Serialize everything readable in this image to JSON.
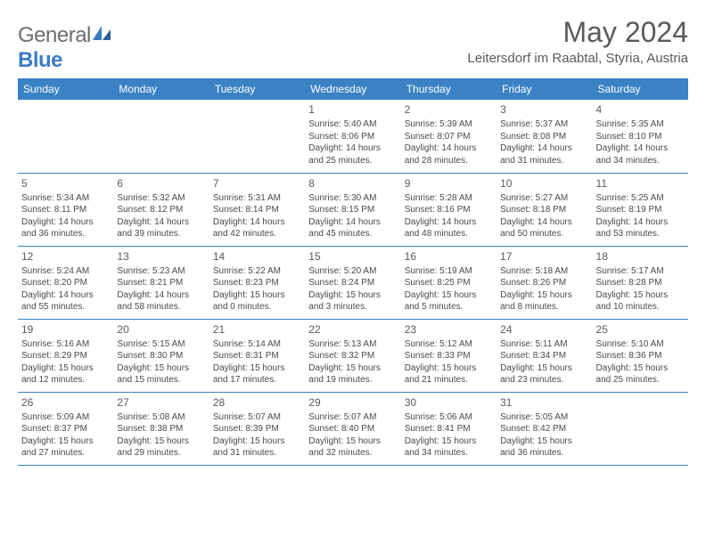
{
  "logo": {
    "word1": "General",
    "word2": "Blue"
  },
  "title": "May 2024",
  "location": "Leitersdorf im Raabtal, Styria, Austria",
  "colors": {
    "header_bg": "#3a82c4",
    "header_text": "#ffffff",
    "cell_border": "#3a82c4",
    "text": "#4a4a4a",
    "title_text": "#5a5a5a",
    "logo_gray": "#6e6e6e",
    "logo_blue": "#3a7cc4"
  },
  "weekdays": [
    "Sunday",
    "Monday",
    "Tuesday",
    "Wednesday",
    "Thursday",
    "Friday",
    "Saturday"
  ],
  "weeks": [
    [
      {
        "day": null
      },
      {
        "day": null
      },
      {
        "day": null
      },
      {
        "day": 1,
        "sunrise": "Sunrise: 5:40 AM",
        "sunset": "Sunset: 8:06 PM",
        "daylight1": "Daylight: 14 hours",
        "daylight2": "and 25 minutes."
      },
      {
        "day": 2,
        "sunrise": "Sunrise: 5:39 AM",
        "sunset": "Sunset: 8:07 PM",
        "daylight1": "Daylight: 14 hours",
        "daylight2": "and 28 minutes."
      },
      {
        "day": 3,
        "sunrise": "Sunrise: 5:37 AM",
        "sunset": "Sunset: 8:08 PM",
        "daylight1": "Daylight: 14 hours",
        "daylight2": "and 31 minutes."
      },
      {
        "day": 4,
        "sunrise": "Sunrise: 5:35 AM",
        "sunset": "Sunset: 8:10 PM",
        "daylight1": "Daylight: 14 hours",
        "daylight2": "and 34 minutes."
      }
    ],
    [
      {
        "day": 5,
        "sunrise": "Sunrise: 5:34 AM",
        "sunset": "Sunset: 8:11 PM",
        "daylight1": "Daylight: 14 hours",
        "daylight2": "and 36 minutes."
      },
      {
        "day": 6,
        "sunrise": "Sunrise: 5:32 AM",
        "sunset": "Sunset: 8:12 PM",
        "daylight1": "Daylight: 14 hours",
        "daylight2": "and 39 minutes."
      },
      {
        "day": 7,
        "sunrise": "Sunrise: 5:31 AM",
        "sunset": "Sunset: 8:14 PM",
        "daylight1": "Daylight: 14 hours",
        "daylight2": "and 42 minutes."
      },
      {
        "day": 8,
        "sunrise": "Sunrise: 5:30 AM",
        "sunset": "Sunset: 8:15 PM",
        "daylight1": "Daylight: 14 hours",
        "daylight2": "and 45 minutes."
      },
      {
        "day": 9,
        "sunrise": "Sunrise: 5:28 AM",
        "sunset": "Sunset: 8:16 PM",
        "daylight1": "Daylight: 14 hours",
        "daylight2": "and 48 minutes."
      },
      {
        "day": 10,
        "sunrise": "Sunrise: 5:27 AM",
        "sunset": "Sunset: 8:18 PM",
        "daylight1": "Daylight: 14 hours",
        "daylight2": "and 50 minutes."
      },
      {
        "day": 11,
        "sunrise": "Sunrise: 5:25 AM",
        "sunset": "Sunset: 8:19 PM",
        "daylight1": "Daylight: 14 hours",
        "daylight2": "and 53 minutes."
      }
    ],
    [
      {
        "day": 12,
        "sunrise": "Sunrise: 5:24 AM",
        "sunset": "Sunset: 8:20 PM",
        "daylight1": "Daylight: 14 hours",
        "daylight2": "and 55 minutes."
      },
      {
        "day": 13,
        "sunrise": "Sunrise: 5:23 AM",
        "sunset": "Sunset: 8:21 PM",
        "daylight1": "Daylight: 14 hours",
        "daylight2": "and 58 minutes."
      },
      {
        "day": 14,
        "sunrise": "Sunrise: 5:22 AM",
        "sunset": "Sunset: 8:23 PM",
        "daylight1": "Daylight: 15 hours",
        "daylight2": "and 0 minutes."
      },
      {
        "day": 15,
        "sunrise": "Sunrise: 5:20 AM",
        "sunset": "Sunset: 8:24 PM",
        "daylight1": "Daylight: 15 hours",
        "daylight2": "and 3 minutes."
      },
      {
        "day": 16,
        "sunrise": "Sunrise: 5:19 AM",
        "sunset": "Sunset: 8:25 PM",
        "daylight1": "Daylight: 15 hours",
        "daylight2": "and 5 minutes."
      },
      {
        "day": 17,
        "sunrise": "Sunrise: 5:18 AM",
        "sunset": "Sunset: 8:26 PM",
        "daylight1": "Daylight: 15 hours",
        "daylight2": "and 8 minutes."
      },
      {
        "day": 18,
        "sunrise": "Sunrise: 5:17 AM",
        "sunset": "Sunset: 8:28 PM",
        "daylight1": "Daylight: 15 hours",
        "daylight2": "and 10 minutes."
      }
    ],
    [
      {
        "day": 19,
        "sunrise": "Sunrise: 5:16 AM",
        "sunset": "Sunset: 8:29 PM",
        "daylight1": "Daylight: 15 hours",
        "daylight2": "and 12 minutes."
      },
      {
        "day": 20,
        "sunrise": "Sunrise: 5:15 AM",
        "sunset": "Sunset: 8:30 PM",
        "daylight1": "Daylight: 15 hours",
        "daylight2": "and 15 minutes."
      },
      {
        "day": 21,
        "sunrise": "Sunrise: 5:14 AM",
        "sunset": "Sunset: 8:31 PM",
        "daylight1": "Daylight: 15 hours",
        "daylight2": "and 17 minutes."
      },
      {
        "day": 22,
        "sunrise": "Sunrise: 5:13 AM",
        "sunset": "Sunset: 8:32 PM",
        "daylight1": "Daylight: 15 hours",
        "daylight2": "and 19 minutes."
      },
      {
        "day": 23,
        "sunrise": "Sunrise: 5:12 AM",
        "sunset": "Sunset: 8:33 PM",
        "daylight1": "Daylight: 15 hours",
        "daylight2": "and 21 minutes."
      },
      {
        "day": 24,
        "sunrise": "Sunrise: 5:11 AM",
        "sunset": "Sunset: 8:34 PM",
        "daylight1": "Daylight: 15 hours",
        "daylight2": "and 23 minutes."
      },
      {
        "day": 25,
        "sunrise": "Sunrise: 5:10 AM",
        "sunset": "Sunset: 8:36 PM",
        "daylight1": "Daylight: 15 hours",
        "daylight2": "and 25 minutes."
      }
    ],
    [
      {
        "day": 26,
        "sunrise": "Sunrise: 5:09 AM",
        "sunset": "Sunset: 8:37 PM",
        "daylight1": "Daylight: 15 hours",
        "daylight2": "and 27 minutes."
      },
      {
        "day": 27,
        "sunrise": "Sunrise: 5:08 AM",
        "sunset": "Sunset: 8:38 PM",
        "daylight1": "Daylight: 15 hours",
        "daylight2": "and 29 minutes."
      },
      {
        "day": 28,
        "sunrise": "Sunrise: 5:07 AM",
        "sunset": "Sunset: 8:39 PM",
        "daylight1": "Daylight: 15 hours",
        "daylight2": "and 31 minutes."
      },
      {
        "day": 29,
        "sunrise": "Sunrise: 5:07 AM",
        "sunset": "Sunset: 8:40 PM",
        "daylight1": "Daylight: 15 hours",
        "daylight2": "and 32 minutes."
      },
      {
        "day": 30,
        "sunrise": "Sunrise: 5:06 AM",
        "sunset": "Sunset: 8:41 PM",
        "daylight1": "Daylight: 15 hours",
        "daylight2": "and 34 minutes."
      },
      {
        "day": 31,
        "sunrise": "Sunrise: 5:05 AM",
        "sunset": "Sunset: 8:42 PM",
        "daylight1": "Daylight: 15 hours",
        "daylight2": "and 36 minutes."
      },
      {
        "day": null
      }
    ]
  ]
}
